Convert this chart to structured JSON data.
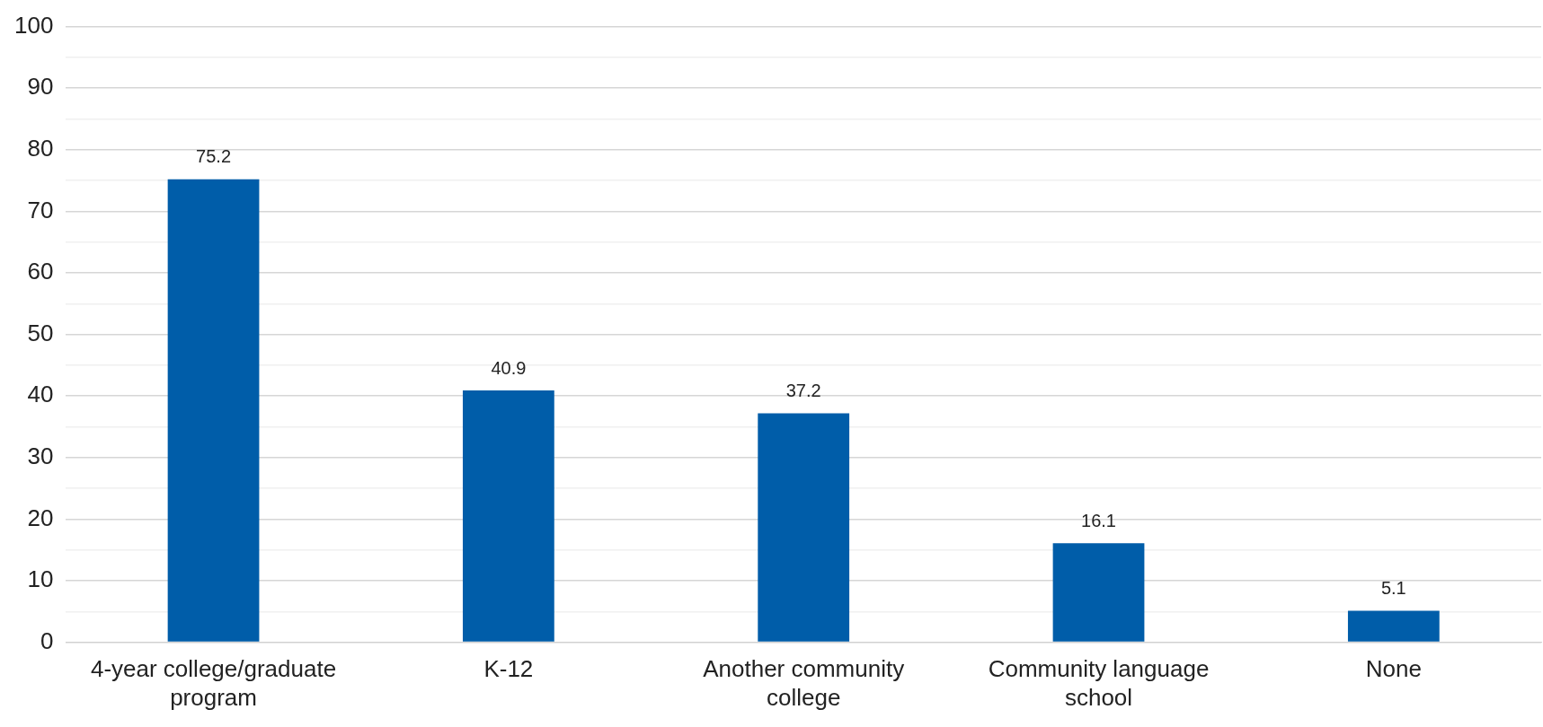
{
  "chart_data": {
    "type": "bar",
    "categories": [
      "4-year college/graduate program",
      "K-12",
      "Another community college",
      "Community language school",
      "None"
    ],
    "values": [
      75.2,
      40.9,
      37.2,
      16.1,
      5.1
    ],
    "color": "#005da9",
    "ylim": [
      0,
      100
    ],
    "yticks": [
      0,
      {
        "value": 5,
        "label": null
      },
      10,
      {
        "value": 15,
        "label": null
      },
      20,
      {
        "value": 25,
        "label": null
      },
      30,
      {
        "value": 35,
        "label": null
      },
      40,
      {
        "value": 45,
        "label": null
      },
      50,
      {
        "value": 55,
        "label": null
      },
      60,
      {
        "value": 65,
        "label": null
      },
      70,
      {
        "value": 75,
        "label": null
      },
      80,
      {
        "value": 85,
        "label": null
      },
      90,
      {
        "value": 95,
        "label": null
      },
      100
    ],
    "grid": "y",
    "data_labels": true
  }
}
